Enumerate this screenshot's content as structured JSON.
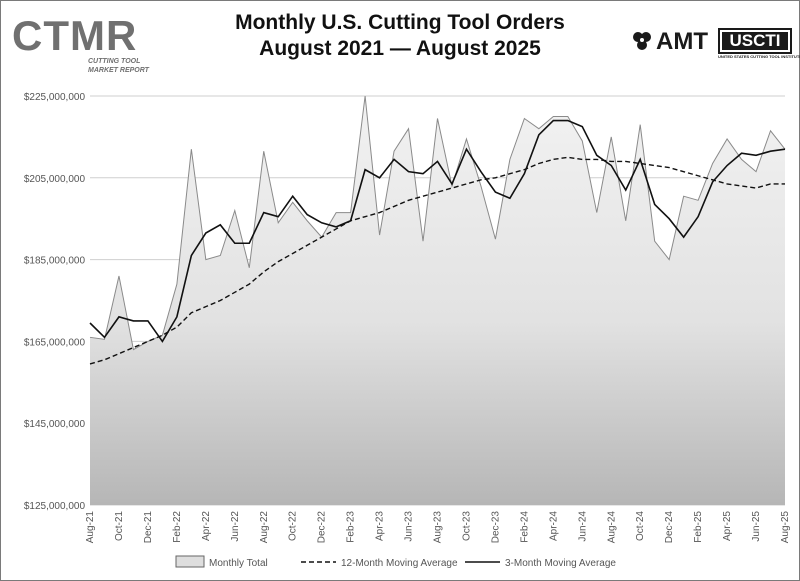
{
  "logos": {
    "left_main": "CTMR",
    "left_sub1": "CUTTING TOOL",
    "left_sub2": "MARKET REPORT",
    "right_amt": "AMT",
    "right_usci": "USCTI",
    "right_usci_sub": "UNITED STATES CUTTING TOOL INSTITUTE"
  },
  "chart_data": {
    "type": "area",
    "title": "Monthly U.S. Cutting Tool Orders",
    "subtitle": "August 2021 — August 2025",
    "xlabel": "",
    "ylabel": "",
    "ylim": [
      125000000,
      225000000
    ],
    "yticks": [
      125000000,
      145000000,
      165000000,
      185000000,
      205000000,
      225000000
    ],
    "ytick_labels": [
      "$125,000,000",
      "$145,000,000",
      "$165,000,000",
      "$185,000,000",
      "$205,000,000",
      "$225,000,000"
    ],
    "x": [
      "Aug-21",
      "Sep-21",
      "Oct-21",
      "Nov-21",
      "Dec-21",
      "Jan-22",
      "Feb-22",
      "Mar-22",
      "Apr-22",
      "May-22",
      "Jun-22",
      "Jul-22",
      "Aug-22",
      "Sep-22",
      "Oct-22",
      "Nov-22",
      "Dec-22",
      "Jan-23",
      "Feb-23",
      "Mar-23",
      "Apr-23",
      "May-23",
      "Jun-23",
      "Jul-23",
      "Aug-23",
      "Sep-23",
      "Oct-23",
      "Nov-23",
      "Dec-23",
      "Jan-24",
      "Feb-24",
      "Mar-24",
      "Apr-24",
      "May-24",
      "Jun-24",
      "Jul-24",
      "Aug-24",
      "Sep-24",
      "Oct-24",
      "Nov-24",
      "Dec-24",
      "Jan-25",
      "Feb-25",
      "Mar-25",
      "Apr-25",
      "May-25",
      "Jun-25",
      "Jul-25",
      "Aug-25"
    ],
    "x_tick_labels": [
      "Aug-21",
      "Oct-21",
      "Dec-21",
      "Feb-22",
      "Apr-22",
      "Jun-22",
      "Aug-22",
      "Oct-22",
      "Dec-22",
      "Feb-23",
      "Apr-23",
      "Jun-23",
      "Aug-23",
      "Oct-23",
      "Dec-23",
      "Feb-24",
      "Apr-24",
      "Jun-24",
      "Aug-24",
      "Oct-24",
      "Dec-24",
      "Feb-25",
      "Apr-25",
      "Jun-25",
      "Aug-25"
    ],
    "legend_position": "bottom",
    "series": [
      {
        "name": "Monthly Total",
        "style": "area",
        "values": [
          166000000,
          165500000,
          181000000,
          163000000,
          165000000,
          166500000,
          179000000,
          212000000,
          185000000,
          186000000,
          197000000,
          183000000,
          211500000,
          194000000,
          199000000,
          194500000,
          190500000,
          196500000,
          196500000,
          225000000,
          191000000,
          211500000,
          217000000,
          189500000,
          219500000,
          203000000,
          214500000,
          203000000,
          190000000,
          209500000,
          219500000,
          217000000,
          220000000,
          220000000,
          214000000,
          196500000,
          215000000,
          194500000,
          218000000,
          189500000,
          185000000,
          200500000,
          199500000,
          208500000,
          214500000,
          209500000,
          206500000,
          216500000,
          212000000
        ]
      },
      {
        "name": "12-Month Moving Average",
        "style": "dashed",
        "values": [
          159500000,
          160500000,
          162000000,
          163500000,
          165000000,
          166500000,
          168500000,
          172000000,
          173500000,
          175000000,
          177000000,
          179000000,
          182000000,
          184500000,
          186500000,
          188500000,
          190500000,
          192500000,
          194500000,
          195500000,
          196500000,
          198000000,
          199500000,
          200500000,
          201500000,
          202500000,
          203500000,
          204500000,
          205000000,
          206000000,
          207000000,
          208500000,
          209500000,
          210000000,
          209500000,
          209500000,
          209000000,
          209000000,
          208500000,
          208000000,
          207500000,
          206500000,
          205500000,
          204500000,
          203500000,
          203000000,
          202500000,
          203500000,
          203500000
        ]
      },
      {
        "name": "3-Month Moving Average",
        "style": "solid",
        "values": [
          169500000,
          166000000,
          171000000,
          170000000,
          170000000,
          165000000,
          171000000,
          186000000,
          191500000,
          193500000,
          189000000,
          189000000,
          196500000,
          195500000,
          200500000,
          196000000,
          194000000,
          193000000,
          194500000,
          207000000,
          205000000,
          209500000,
          206500000,
          206000000,
          209000000,
          203500000,
          212000000,
          206500000,
          201500000,
          200000000,
          206000000,
          215500000,
          219000000,
          219000000,
          217500000,
          210500000,
          208000000,
          202000000,
          209500000,
          198500000,
          195000000,
          190500000,
          195500000,
          204000000,
          208000000,
          211000000,
          210500000,
          211500000,
          212000000
        ]
      }
    ]
  }
}
